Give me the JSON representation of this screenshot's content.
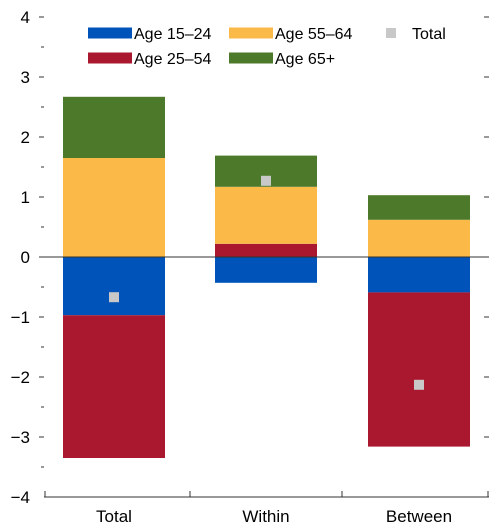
{
  "chart_data": {
    "type": "bar",
    "stacked": true,
    "categories": [
      "Total",
      "Within",
      "Between"
    ],
    "ylim": [
      -4,
      4
    ],
    "yticks": [
      "−4",
      "−3",
      "−2",
      "−1",
      "0",
      "1",
      "2",
      "3",
      "4"
    ],
    "grid": false,
    "legend_position": "top",
    "series": [
      {
        "name": "Age 15–24",
        "color": "#0053b8",
        "values": [
          -0.97,
          -0.43,
          -0.59
        ]
      },
      {
        "name": "Age 25–54",
        "color": "#a9182e",
        "values": [
          -2.38,
          0.22,
          -2.57
        ]
      },
      {
        "name": "Age 55–64",
        "color": "#fbb947",
        "values": [
          1.65,
          0.95,
          0.62
        ]
      },
      {
        "name": "Age 65+",
        "color": "#4d7a2a",
        "values": [
          1.02,
          0.52,
          0.41
        ]
      }
    ],
    "total": {
      "name": "Total",
      "color": "#c8c8c8",
      "values": [
        -0.67,
        1.27,
        -2.13
      ]
    }
  }
}
